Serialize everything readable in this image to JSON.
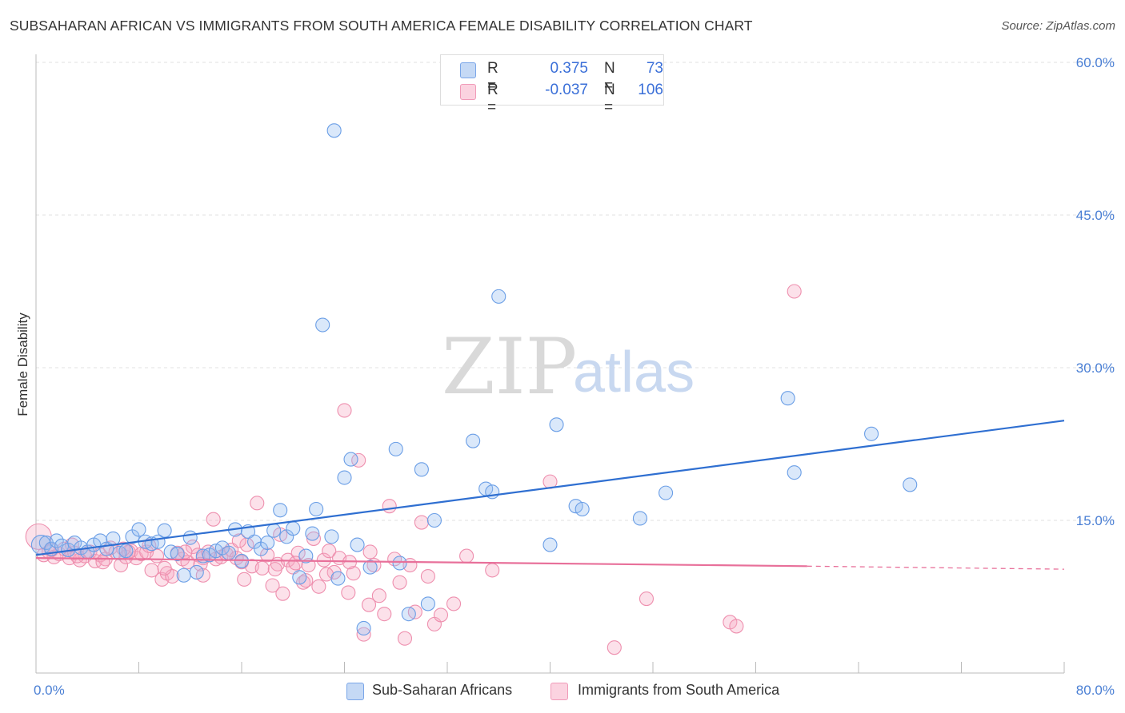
{
  "title": "SUBSAHARAN AFRICAN VS IMMIGRANTS FROM SOUTH AMERICA FEMALE DISABILITY CORRELATION CHART",
  "source": "Source: ZipAtlas.com",
  "watermark": {
    "zip": "ZIP",
    "atlas": "atlas"
  },
  "legend": {
    "rows": [
      {
        "r_label": "R =",
        "r_value": "0.375",
        "n_label": "N =",
        "n_value": "73",
        "color": "#a9c8f0"
      },
      {
        "r_label": "R =",
        "r_value": "-0.037",
        "n_label": "N =",
        "n_value": "106",
        "color": "#f7b6cb"
      }
    ]
  },
  "colors": {
    "blue_fill": "rgba(150,190,240,0.35)",
    "blue_stroke": "#6a9ee6",
    "blue_line": "#2f6fd1",
    "pink_fill": "rgba(245,170,195,0.35)",
    "pink_stroke": "#ee8fae",
    "pink_line": "#e8709a",
    "grid": "#e0e0e0",
    "axis_text": "#4a7fd4"
  },
  "chart_data": {
    "type": "scatter",
    "title": "SUBSAHARAN AFRICAN VS IMMIGRANTS FROM SOUTH AMERICA FEMALE DISABILITY CORRELATION CHART",
    "xlabel": "",
    "ylabel": "Female Disability",
    "xlim": [
      0,
      80
    ],
    "ylim": [
      0,
      60
    ],
    "x_tick_labels": [
      "0.0%",
      "80.0%"
    ],
    "y_tick_labels": [
      "15.0%",
      "30.0%",
      "45.0%",
      "60.0%"
    ],
    "y_ticks": [
      15,
      30,
      45,
      60
    ],
    "x_minor_ticks": [
      0,
      8,
      16,
      24,
      32,
      40,
      48,
      56,
      64,
      72,
      80
    ],
    "grid": true,
    "legend_position": "top-center",
    "series": [
      {
        "name": "Sub-Saharan Africans",
        "color": "#6a9ee6",
        "trend": {
          "x": [
            0,
            80
          ],
          "y": [
            11.6,
            24.8
          ],
          "dashed_from": null
        },
        "points": [
          [
            0.4,
            12.6
          ],
          [
            0.8,
            12.8
          ],
          [
            1.2,
            12.2
          ],
          [
            1.6,
            13.0
          ],
          [
            2.0,
            12.5
          ],
          [
            2.5,
            12.1
          ],
          [
            3.0,
            12.8
          ],
          [
            3.5,
            12.3
          ],
          [
            4.0,
            11.9
          ],
          [
            4.5,
            12.6
          ],
          [
            5.0,
            13.0
          ],
          [
            5.5,
            12.2
          ],
          [
            6.0,
            13.2
          ],
          [
            6.5,
            11.8
          ],
          [
            7.0,
            12.0
          ],
          [
            7.5,
            13.4
          ],
          [
            8.0,
            14.1
          ],
          [
            8.5,
            12.9
          ],
          [
            9.0,
            12.7
          ],
          [
            9.5,
            12.9
          ],
          [
            10.0,
            14.0
          ],
          [
            10.5,
            11.9
          ],
          [
            11.0,
            11.7
          ],
          [
            11.5,
            9.6
          ],
          [
            12.0,
            13.3
          ],
          [
            12.5,
            9.9
          ],
          [
            13.0,
            11.5
          ],
          [
            13.5,
            11.6
          ],
          [
            14.0,
            12.0
          ],
          [
            14.5,
            12.3
          ],
          [
            15.0,
            11.8
          ],
          [
            15.5,
            14.1
          ],
          [
            16.0,
            11.0
          ],
          [
            16.5,
            13.9
          ],
          [
            17.0,
            12.9
          ],
          [
            17.5,
            12.2
          ],
          [
            18.0,
            12.8
          ],
          [
            18.5,
            14.0
          ],
          [
            19.0,
            16.0
          ],
          [
            19.5,
            13.4
          ],
          [
            20.0,
            14.2
          ],
          [
            20.5,
            9.4
          ],
          [
            21.0,
            11.5
          ],
          [
            21.5,
            13.7
          ],
          [
            21.8,
            16.1
          ],
          [
            22.3,
            34.2
          ],
          [
            23.0,
            13.4
          ],
          [
            23.5,
            9.3
          ],
          [
            24.0,
            19.2
          ],
          [
            24.5,
            21.0
          ],
          [
            25.0,
            12.6
          ],
          [
            25.5,
            4.4
          ],
          [
            26.0,
            10.4
          ],
          [
            28.0,
            22.0
          ],
          [
            28.3,
            10.8
          ],
          [
            29.0,
            5.8
          ],
          [
            30.0,
            20.0
          ],
          [
            30.5,
            6.8
          ],
          [
            31.0,
            15.0
          ],
          [
            34.0,
            22.8
          ],
          [
            35.0,
            18.1
          ],
          [
            35.5,
            17.8
          ],
          [
            36.0,
            37.0
          ],
          [
            40.0,
            12.6
          ],
          [
            40.5,
            24.4
          ],
          [
            42.0,
            16.4
          ],
          [
            42.5,
            16.1
          ],
          [
            47.0,
            15.2
          ],
          [
            49.0,
            17.7
          ],
          [
            58.5,
            27.0
          ],
          [
            59.0,
            19.7
          ],
          [
            65.0,
            23.5
          ],
          [
            68.0,
            18.5
          ],
          [
            23.2,
            53.3
          ]
        ]
      },
      {
        "name": "Immigrants from South America",
        "color": "#ee8fae",
        "trend": {
          "x": [
            0,
            60
          ],
          "y": [
            11.3,
            10.5
          ],
          "dashed_from": 60,
          "dashed_to": 80,
          "dashed_end_y": 10.2
        },
        "points": [
          [
            0.2,
            13.4
          ],
          [
            0.6,
            11.6
          ],
          [
            1.0,
            11.9
          ],
          [
            1.4,
            11.4
          ],
          [
            1.8,
            11.7
          ],
          [
            2.2,
            12.2
          ],
          [
            2.6,
            11.3
          ],
          [
            3.0,
            11.8
          ],
          [
            3.4,
            11.1
          ],
          [
            3.8,
            11.5
          ],
          [
            4.2,
            11.9
          ],
          [
            4.6,
            11.0
          ],
          [
            5.0,
            11.6
          ],
          [
            5.4,
            11.2
          ],
          [
            5.8,
            12.3
          ],
          [
            6.2,
            11.9
          ],
          [
            6.6,
            10.6
          ],
          [
            7.0,
            11.4
          ],
          [
            7.4,
            12.0
          ],
          [
            7.8,
            11.3
          ],
          [
            8.2,
            11.7
          ],
          [
            8.6,
            11.9
          ],
          [
            9.0,
            10.1
          ],
          [
            9.4,
            11.5
          ],
          [
            9.8,
            9.2
          ],
          [
            10.2,
            9.8
          ],
          [
            10.6,
            9.5
          ],
          [
            11.0,
            11.8
          ],
          [
            11.4,
            11.2
          ],
          [
            11.8,
            10.9
          ],
          [
            12.2,
            12.4
          ],
          [
            12.6,
            11.6
          ],
          [
            13.0,
            11.3
          ],
          [
            13.4,
            11.9
          ],
          [
            13.8,
            15.1
          ],
          [
            14.0,
            11.2
          ],
          [
            14.4,
            11.4
          ],
          [
            14.8,
            11.7
          ],
          [
            15.2,
            12.1
          ],
          [
            15.6,
            11.3
          ],
          [
            16.0,
            10.9
          ],
          [
            16.4,
            12.6
          ],
          [
            16.8,
            10.5
          ],
          [
            17.2,
            16.7
          ],
          [
            17.6,
            10.3
          ],
          [
            18.0,
            11.6
          ],
          [
            18.4,
            8.6
          ],
          [
            18.8,
            10.7
          ],
          [
            19.2,
            7.8
          ],
          [
            19.6,
            11.1
          ],
          [
            20.0,
            10.4
          ],
          [
            20.4,
            11.8
          ],
          [
            20.8,
            8.9
          ],
          [
            21.2,
            10.6
          ],
          [
            21.6,
            13.2
          ],
          [
            22.0,
            8.5
          ],
          [
            22.4,
            11.1
          ],
          [
            22.8,
            12.0
          ],
          [
            23.2,
            9.9
          ],
          [
            23.6,
            11.3
          ],
          [
            24.0,
            25.8
          ],
          [
            24.3,
            7.9
          ],
          [
            24.7,
            9.8
          ],
          [
            25.1,
            20.9
          ],
          [
            25.5,
            3.8
          ],
          [
            25.9,
            6.7
          ],
          [
            26.3,
            10.6
          ],
          [
            26.7,
            7.6
          ],
          [
            27.1,
            5.8
          ],
          [
            27.5,
            16.4
          ],
          [
            27.9,
            11.2
          ],
          [
            28.3,
            8.9
          ],
          [
            28.7,
            3.4
          ],
          [
            29.1,
            10.6
          ],
          [
            29.5,
            6.0
          ],
          [
            30.0,
            14.8
          ],
          [
            30.5,
            9.5
          ],
          [
            31.0,
            4.8
          ],
          [
            31.5,
            5.7
          ],
          [
            32.5,
            6.8
          ],
          [
            33.5,
            11.5
          ],
          [
            35.5,
            10.1
          ],
          [
            40.0,
            18.8
          ],
          [
            47.5,
            7.3
          ],
          [
            54.0,
            5.0
          ],
          [
            54.5,
            4.6
          ],
          [
            59.0,
            37.5
          ],
          [
            45.0,
            2.5
          ],
          [
            12.8,
            10.7
          ],
          [
            8.8,
            12.5
          ],
          [
            5.2,
            10.9
          ],
          [
            2.8,
            12.6
          ],
          [
            15.8,
            13.0
          ],
          [
            19.0,
            13.6
          ],
          [
            22.6,
            9.7
          ],
          [
            26.0,
            11.9
          ],
          [
            13.0,
            9.6
          ],
          [
            10.0,
            10.3
          ],
          [
            7.2,
            11.9
          ],
          [
            3.2,
            11.5
          ],
          [
            1.2,
            12.1
          ],
          [
            16.2,
            9.2
          ],
          [
            20.2,
            10.8
          ],
          [
            24.4,
            10.9
          ],
          [
            18.6,
            10.2
          ],
          [
            21.0,
            9.1
          ],
          [
            11.6,
            11.9
          ],
          [
            6.8,
            12.2
          ]
        ]
      }
    ]
  },
  "bottom_legend": [
    {
      "label": "Sub-Saharan Africans",
      "color": "#a9c8f0"
    },
    {
      "label": "Immigrants from South America",
      "color": "#f7b6cb"
    }
  ]
}
